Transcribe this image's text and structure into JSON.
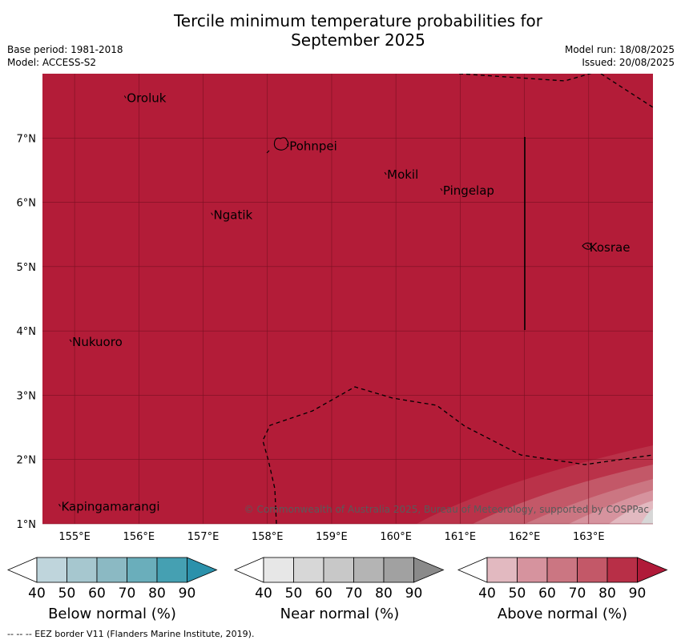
{
  "title_line1": "Tercile minimum temperature probabilities for",
  "title_line2": "September 2025",
  "base_period": "Base period: 1981-2018",
  "model": "Model: ACCESS-S2",
  "model_run": "Model run: 18/08/2025",
  "issued": "Issued: 20/08/2025",
  "copyright": "© Commonwealth of Australia 2025, Bureau of Meteorology, supported by COSPPac",
  "footer_note": "--  --  -- EEZ border V11 (Flanders Marine Institute, 2019).",
  "map": {
    "lon_range": [
      154.5,
      164.0
    ],
    "lat_range": [
      1.0,
      8.0
    ],
    "x_ticks": [
      "155°E",
      "156°E",
      "157°E",
      "158°E",
      "159°E",
      "160°E",
      "161°E",
      "162°E",
      "163°E"
    ],
    "y_ticks": [
      "1°N",
      "2°N",
      "3°N",
      "4°N",
      "5°N",
      "6°N",
      "7°N"
    ],
    "base_color": "#b31c38",
    "places": [
      {
        "name": "Oroluk",
        "lon": 155.8,
        "lat": 7.62
      },
      {
        "name": "Pohnpei",
        "lon": 158.33,
        "lat": 6.87
      },
      {
        "name": "Mokil",
        "lon": 159.85,
        "lat": 6.43
      },
      {
        "name": "Pingelap",
        "lon": 160.72,
        "lat": 6.18
      },
      {
        "name": "Ngatik",
        "lon": 157.15,
        "lat": 5.8
      },
      {
        "name": "Kosrae",
        "lon": 163.0,
        "lat": 5.3
      },
      {
        "name": "Nukuoro",
        "lon": 154.95,
        "lat": 3.83
      },
      {
        "name": "Kapingamarangi",
        "lon": 154.78,
        "lat": 1.27
      }
    ]
  },
  "legends": [
    {
      "label": "Below normal (%)",
      "ticks": [
        "40",
        "50",
        "60",
        "70",
        "80",
        "90"
      ],
      "colors": [
        "#ffffff",
        "#bfd5dc",
        "#a6c7cf",
        "#8bb9c3",
        "#6aaebb",
        "#45a0b2",
        "#2b91ab"
      ]
    },
    {
      "label": "Near normal (%)",
      "ticks": [
        "40",
        "50",
        "60",
        "70",
        "80",
        "90"
      ],
      "colors": [
        "#ffffff",
        "#e7e7e7",
        "#d7d7d7",
        "#c8c8c8",
        "#b4b4b4",
        "#a1a1a1",
        "#8a8a8a"
      ]
    },
    {
      "label": "Above normal (%)",
      "ticks": [
        "40",
        "50",
        "60",
        "70",
        "80",
        "90"
      ],
      "colors": [
        "#ffffff",
        "#e2b9c0",
        "#d6939e",
        "#cb7682",
        "#c35868",
        "#b82f47",
        "#b01a39"
      ]
    }
  ]
}
